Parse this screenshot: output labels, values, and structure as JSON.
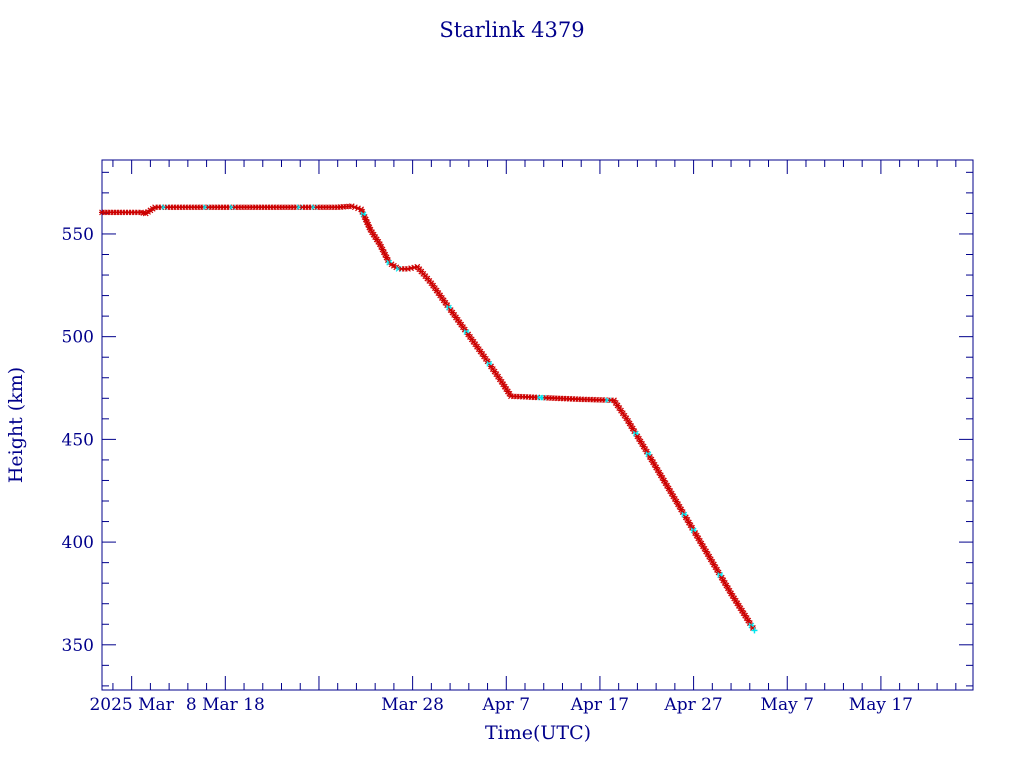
{
  "chart_data": {
    "type": "line",
    "title": "Starlink 4379",
    "xlabel": "Time(UTC)",
    "ylabel": "Height (km)",
    "x_range": [
      "2025-02-22T20:00",
      "2025-05-26T20:00"
    ],
    "ylim": [
      328,
      586
    ],
    "y_ticks": [
      350,
      400,
      450,
      500,
      550
    ],
    "x_ticks": [
      {
        "date": "2025-02-26",
        "label": "2025 Mar  "
      },
      {
        "date": "2025-03-08",
        "label": "8 Mar 18"
      },
      {
        "date": "2025-03-28",
        "label": "Mar 28"
      },
      {
        "date": "2025-04-07",
        "label": "Apr  7"
      },
      {
        "date": "2025-04-17",
        "label": "Apr 17"
      },
      {
        "date": "2025-04-27",
        "label": "Apr 27"
      },
      {
        "date": "2025-05-07",
        "label": "May  7"
      },
      {
        "date": "2025-05-17",
        "label": "May 17"
      }
    ],
    "series": [
      {
        "color": "#cc0000",
        "highlight_color": "#00e5ee",
        "line_color": "#000000",
        "x": [
          "2025-02-22T20:00",
          "2025-02-25T00:00",
          "2025-02-27T00:00",
          "2025-02-27T12:00",
          "2025-02-28T12:00",
          "2025-03-01T12:00",
          "2025-03-05T00:00",
          "2025-03-10T00:00",
          "2025-03-15T00:00",
          "2025-03-20T00:00",
          "2025-03-21T12:00",
          "2025-03-22T12:00",
          "2025-03-23T12:00",
          "2025-03-24T12:00",
          "2025-03-25T12:00",
          "2025-03-26T12:00",
          "2025-03-27T12:00",
          "2025-03-28T12:00",
          "2025-03-30T00:00",
          "2025-04-02T00:00",
          "2025-04-05T00:00",
          "2025-04-06T12:00",
          "2025-04-07T12:00",
          "2025-04-10T00:00",
          "2025-04-15T00:00",
          "2025-04-18T12:00",
          "2025-04-20T00:00",
          "2025-04-22T00:00",
          "2025-04-25T00:00",
          "2025-04-28T00:00",
          "2025-05-01T00:00",
          "2025-05-03T12:00"
        ],
        "values": [
          560.5,
          560.5,
          560.5,
          560.0,
          563.0,
          563.0,
          563.0,
          563.0,
          563.0,
          563.0,
          563.5,
          562.0,
          552.0,
          545.0,
          536.0,
          533.0,
          533.0,
          534.0,
          526.0,
          507.0,
          488.0,
          478.0,
          471.0,
          470.5,
          469.5,
          469.0,
          459.0,
          444.0,
          421.0,
          398.0,
          375.0,
          357.0
        ]
      }
    ]
  }
}
